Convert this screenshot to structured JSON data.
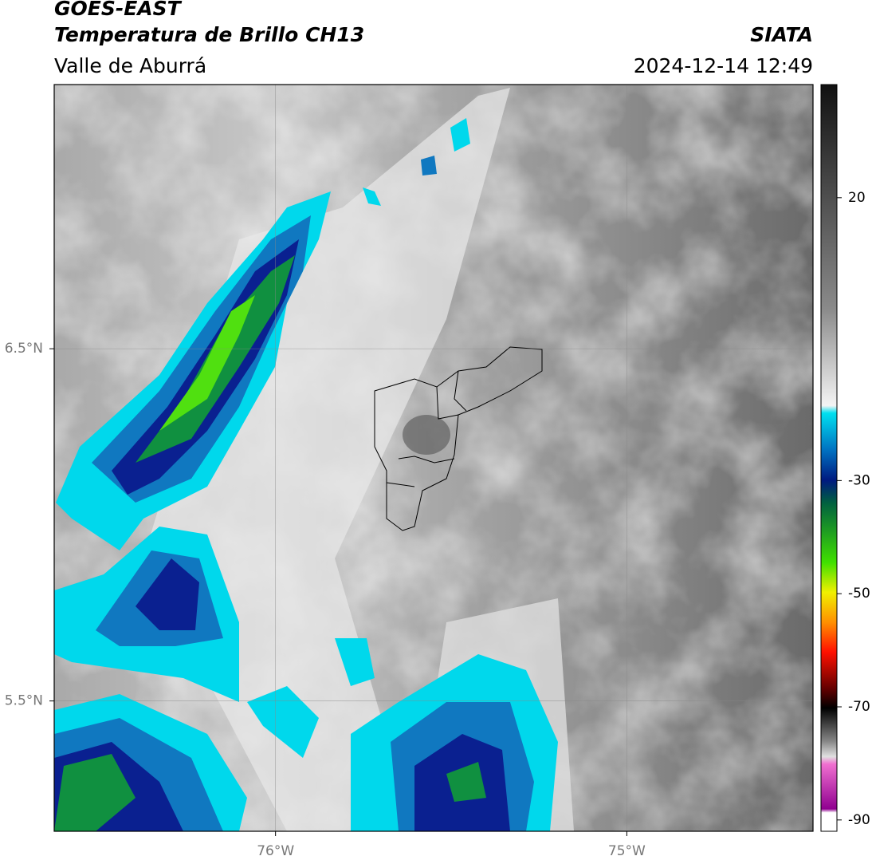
{
  "header": {
    "title": "GOES-EAST",
    "subtitle": "Temperatura de Brillo CH13",
    "region": "Valle de Aburrá",
    "source": "SIATA",
    "timestamp": "2024-12-14 12:49"
  },
  "map": {
    "xlim": [
      -76.63,
      -74.47
    ],
    "ylim": [
      5.13,
      7.25
    ],
    "xticks": [
      {
        "value": -76,
        "label": "76°W"
      },
      {
        "value": -75,
        "label": "75°W"
      }
    ],
    "yticks": [
      {
        "value": 6.5,
        "label": "6.5°N"
      },
      {
        "value": 5.5,
        "label": "5.5°N"
      }
    ],
    "grid": true
  },
  "colorbar": {
    "lim": [
      -92,
      40
    ],
    "ticks": [
      20,
      -30,
      -50,
      -70,
      -90
    ]
  }
}
